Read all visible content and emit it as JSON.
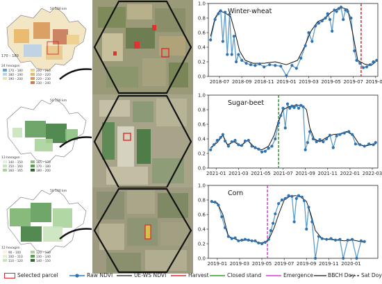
{
  "colors": {
    "raw": "#5b9ccc",
    "raw_dot": "#2f72b0",
    "fit": "#111111",
    "harvest": "#e0262b",
    "closed": "#2e9a2e",
    "emergence": "#d93ad9",
    "bbch": "#111111",
    "sat": "#111111",
    "parcel": "#e0262b"
  },
  "maps": [
    {
      "scale_label": "50 100 km",
      "extra_label": "170 – 180",
      "legend_title": "24 hexagon",
      "legend": [
        "170 – 180",
        "180 – 190",
        "190 – 200",
        "200 – 210",
        "210 – 220",
        "220 – 230",
        "230 – 240"
      ]
    },
    {
      "scale_label": "50 100 km",
      "extra_label": "",
      "legend_title": "13 hexagon",
      "legend": [
        "140 – 150",
        "150 – 160",
        "160 – 165",
        "165 – 170",
        "170 – 180",
        "180 – 200"
      ]
    },
    {
      "scale_label": "50 100 km",
      "extra_label": "",
      "legend_title": "12 hexagon",
      "legend": [
        "90 – 100",
        "100 – 110",
        "110 – 120",
        "120 – 130",
        "130 – 140",
        "140 – 150"
      ]
    }
  ],
  "chart_data": [
    {
      "type": "line",
      "title": "Winter-wheat",
      "ylim": [
        0,
        1.0
      ],
      "yticks": [
        "0.0",
        "0.2",
        "0.4",
        "0.6",
        "0.8",
        "1.0"
      ],
      "xlim": [
        0,
        15.2
      ],
      "xticks": [
        {
          "v": 1,
          "label": "2018-07"
        },
        {
          "v": 3,
          "label": "2018-09"
        },
        {
          "v": 5,
          "label": "2018-11"
        },
        {
          "v": 7,
          "label": "2019-01"
        },
        {
          "v": 9,
          "label": "2019-03"
        },
        {
          "v": 11,
          "label": "2019-05"
        },
        {
          "v": 13,
          "label": "2019-07"
        },
        {
          "v": 15,
          "label": "2019-09"
        }
      ],
      "events": [
        {
          "x": 13.7,
          "kind": "harvest"
        }
      ],
      "fit": [
        [
          0.2,
          0.55
        ],
        [
          0.6,
          0.8
        ],
        [
          1.0,
          0.9
        ],
        [
          1.5,
          0.87
        ],
        [
          2.0,
          0.82
        ],
        [
          2.4,
          0.6
        ],
        [
          2.8,
          0.35
        ],
        [
          3.3,
          0.22
        ],
        [
          4.0,
          0.18
        ],
        [
          5.0,
          0.18
        ],
        [
          6.0,
          0.2
        ],
        [
          7.0,
          0.16
        ],
        [
          8.0,
          0.22
        ],
        [
          8.6,
          0.4
        ],
        [
          9.2,
          0.62
        ],
        [
          9.8,
          0.75
        ],
        [
          10.5,
          0.8
        ],
        [
          11.0,
          0.88
        ],
        [
          11.5,
          0.92
        ],
        [
          12.0,
          0.94
        ],
        [
          12.5,
          0.92
        ],
        [
          13.0,
          0.55
        ],
        [
          13.4,
          0.22
        ],
        [
          14.0,
          0.17
        ],
        [
          14.6,
          0.15
        ],
        [
          15.0,
          0.2
        ]
      ],
      "raw": [
        [
          0.2,
          0.5
        ],
        [
          0.6,
          0.78
        ],
        [
          0.9,
          0.86
        ],
        [
          1.1,
          0.9
        ],
        [
          1.3,
          0.48
        ],
        [
          1.5,
          0.88
        ],
        [
          1.7,
          0.3
        ],
        [
          1.9,
          0.85
        ],
        [
          2.1,
          0.3
        ],
        [
          2.3,
          0.55
        ],
        [
          2.5,
          0.2
        ],
        [
          2.7,
          0.3
        ],
        [
          3.0,
          0.22
        ],
        [
          3.4,
          0.18
        ],
        [
          3.8,
          0.16
        ],
        [
          4.2,
          0.15
        ],
        [
          4.6,
          0.17
        ],
        [
          5.0,
          0.13
        ],
        [
          5.5,
          0.16
        ],
        [
          6.0,
          0.15
        ],
        [
          6.5,
          0.14
        ],
        [
          7.0,
          0.01
        ],
        [
          7.5,
          0.15
        ],
        [
          7.9,
          0.11
        ],
        [
          8.3,
          0.25
        ],
        [
          8.7,
          0.42
        ],
        [
          9.0,
          0.6
        ],
        [
          9.3,
          0.48
        ],
        [
          9.6,
          0.69
        ],
        [
          9.9,
          0.73
        ],
        [
          10.2,
          0.76
        ],
        [
          10.5,
          0.8
        ],
        [
          10.7,
          0.86
        ],
        [
          10.9,
          0.78
        ],
        [
          11.1,
          0.62
        ],
        [
          11.3,
          0.91
        ],
        [
          11.5,
          0.89
        ],
        [
          11.7,
          0.93
        ],
        [
          11.9,
          0.95
        ],
        [
          12.1,
          0.78
        ],
        [
          12.3,
          0.91
        ],
        [
          12.5,
          0.89
        ],
        [
          12.8,
          0.8
        ],
        [
          13.1,
          0.35
        ],
        [
          13.3,
          0.22
        ],
        [
          13.6,
          0.18
        ],
        [
          13.9,
          0.12
        ],
        [
          14.2,
          0.13
        ],
        [
          14.5,
          0.16
        ],
        [
          14.8,
          0.2
        ],
        [
          15.1,
          0.22
        ]
      ]
    },
    {
      "type": "line",
      "title": "Sugar-beet",
      "ylim": [
        0,
        1.0
      ],
      "yticks": [
        "0.0",
        "0.2",
        "0.4",
        "0.6",
        "0.8",
        "1.0"
      ],
      "xlim": [
        0,
        15.2
      ],
      "xticks": [
        {
          "v": 0.7,
          "label": "2021-01"
        },
        {
          "v": 2.7,
          "label": "2021-03"
        },
        {
          "v": 4.7,
          "label": "2021-05"
        },
        {
          "v": 6.7,
          "label": "2021-07"
        },
        {
          "v": 8.7,
          "label": "2021-09"
        },
        {
          "v": 10.7,
          "label": "2021-11"
        },
        {
          "v": 12.7,
          "label": "2022-01"
        },
        {
          "v": 14.7,
          "label": "2022-03"
        }
      ],
      "events": [
        {
          "x": 6.3,
          "kind": "closed"
        }
      ],
      "fit": [
        [
          0.2,
          0.28
        ],
        [
          0.8,
          0.35
        ],
        [
          1.3,
          0.45
        ],
        [
          1.7,
          0.32
        ],
        [
          2.3,
          0.36
        ],
        [
          2.9,
          0.3
        ],
        [
          3.5,
          0.38
        ],
        [
          4.2,
          0.28
        ],
        [
          4.8,
          0.25
        ],
        [
          5.4,
          0.3
        ],
        [
          5.9,
          0.45
        ],
        [
          6.3,
          0.65
        ],
        [
          6.7,
          0.8
        ],
        [
          7.2,
          0.84
        ],
        [
          7.8,
          0.86
        ],
        [
          8.4,
          0.86
        ],
        [
          8.8,
          0.8
        ],
        [
          9.1,
          0.55
        ],
        [
          9.5,
          0.4
        ],
        [
          10.0,
          0.36
        ],
        [
          10.6,
          0.42
        ],
        [
          11.2,
          0.46
        ],
        [
          11.8,
          0.47
        ],
        [
          12.4,
          0.5
        ],
        [
          13.0,
          0.45
        ],
        [
          13.5,
          0.33
        ],
        [
          14.0,
          0.3
        ],
        [
          14.6,
          0.32
        ],
        [
          15.0,
          0.33
        ]
      ],
      "raw": [
        [
          0.2,
          0.25
        ],
        [
          0.5,
          0.32
        ],
        [
          0.8,
          0.38
        ],
        [
          1.1,
          0.42
        ],
        [
          1.3,
          0.46
        ],
        [
          1.5,
          0.37
        ],
        [
          1.8,
          0.3
        ],
        [
          2.1,
          0.36
        ],
        [
          2.4,
          0.38
        ],
        [
          2.7,
          0.32
        ],
        [
          3.0,
          0.31
        ],
        [
          3.3,
          0.37
        ],
        [
          3.6,
          0.38
        ],
        [
          3.9,
          0.3
        ],
        [
          4.2,
          0.28
        ],
        [
          4.5,
          0.26
        ],
        [
          4.8,
          0.22
        ],
        [
          5.1,
          0.23
        ],
        [
          5.4,
          0.27
        ],
        [
          5.7,
          0.3
        ],
        [
          6.0,
          0.4
        ],
        [
          6.3,
          0.62
        ],
        [
          6.5,
          0.72
        ],
        [
          6.7,
          0.82
        ],
        [
          6.9,
          0.55
        ],
        [
          7.1,
          0.88
        ],
        [
          7.3,
          0.82
        ],
        [
          7.5,
          0.85
        ],
        [
          7.7,
          0.83
        ],
        [
          7.9,
          0.86
        ],
        [
          8.1,
          0.82
        ],
        [
          8.3,
          0.86
        ],
        [
          8.5,
          0.84
        ],
        [
          8.7,
          0.25
        ],
        [
          8.9,
          0.35
        ],
        [
          9.1,
          0.5
        ],
        [
          9.4,
          0.4
        ],
        [
          9.7,
          0.36
        ],
        [
          10.0,
          0.39
        ],
        [
          10.3,
          0.36
        ],
        [
          10.6,
          0.4
        ],
        [
          10.9,
          0.45
        ],
        [
          11.2,
          0.28
        ],
        [
          11.5,
          0.44
        ],
        [
          11.8,
          0.46
        ],
        [
          12.2,
          0.48
        ],
        [
          12.6,
          0.5
        ],
        [
          12.9,
          0.46
        ],
        [
          13.2,
          0.33
        ],
        [
          13.6,
          0.32
        ],
        [
          14.0,
          0.3
        ],
        [
          14.4,
          0.33
        ],
        [
          14.8,
          0.32
        ],
        [
          15.0,
          0.35
        ]
      ]
    },
    {
      "type": "line",
      "title": "Corn",
      "ylim": [
        0,
        1.0
      ],
      "yticks": [
        "0.0",
        "0.2",
        "0.4",
        "0.6",
        "0.8",
        "1.0"
      ],
      "xlim": [
        0,
        15.2
      ],
      "xticks": [
        {
          "v": 0.8,
          "label": "2019-01"
        },
        {
          "v": 2.8,
          "label": "2019-03"
        },
        {
          "v": 4.8,
          "label": "2019-05"
        },
        {
          "v": 6.8,
          "label": "2019-07"
        },
        {
          "v": 8.8,
          "label": "2019-09"
        },
        {
          "v": 10.8,
          "label": "2019-11"
        },
        {
          "v": 12.8,
          "label": "2020-01"
        }
      ],
      "events": [
        {
          "x": 5.3,
          "kind": "emergence"
        }
      ],
      "fit": [
        [
          0.3,
          0.77
        ],
        [
          0.8,
          0.76
        ],
        [
          1.3,
          0.6
        ],
        [
          1.8,
          0.3
        ],
        [
          2.3,
          0.27
        ],
        [
          2.8,
          0.24
        ],
        [
          3.4,
          0.25
        ],
        [
          4.0,
          0.24
        ],
        [
          4.6,
          0.21
        ],
        [
          5.0,
          0.22
        ],
        [
          5.4,
          0.25
        ],
        [
          5.9,
          0.42
        ],
        [
          6.3,
          0.6
        ],
        [
          6.8,
          0.8
        ],
        [
          7.3,
          0.85
        ],
        [
          7.8,
          0.86
        ],
        [
          8.3,
          0.84
        ],
        [
          8.8,
          0.78
        ],
        [
          9.2,
          0.6
        ],
        [
          9.6,
          0.38
        ],
        [
          10.2,
          0.27
        ],
        [
          10.8,
          0.26
        ],
        [
          11.5,
          0.25
        ],
        [
          12.2,
          0.24
        ],
        [
          13.0,
          0.25
        ],
        [
          13.6,
          0.23
        ],
        [
          14.0,
          0.22
        ]
      ],
      "raw": [
        [
          0.3,
          0.78
        ],
        [
          0.6,
          0.77
        ],
        [
          0.9,
          0.73
        ],
        [
          1.2,
          0.57
        ],
        [
          1.5,
          0.42
        ],
        [
          1.8,
          0.3
        ],
        [
          2.1,
          0.27
        ],
        [
          2.4,
          0.28
        ],
        [
          2.7,
          0.24
        ],
        [
          3.0,
          0.25
        ],
        [
          3.3,
          0.26
        ],
        [
          3.6,
          0.25
        ],
        [
          3.9,
          0.24
        ],
        [
          4.2,
          0.24
        ],
        [
          4.5,
          0.21
        ],
        [
          4.8,
          0.2
        ],
        [
          5.1,
          0.22
        ],
        [
          5.4,
          0.26
        ],
        [
          5.6,
          0.38
        ],
        [
          5.8,
          0.48
        ],
        [
          6.0,
          0.61
        ],
        [
          6.3,
          0.75
        ],
        [
          6.6,
          0.8
        ],
        [
          6.9,
          0.82
        ],
        [
          7.2,
          0.86
        ],
        [
          7.5,
          0.85
        ],
        [
          7.7,
          0.5
        ],
        [
          7.9,
          0.82
        ],
        [
          8.1,
          0.86
        ],
        [
          8.4,
          0.84
        ],
        [
          8.6,
          0.79
        ],
        [
          8.8,
          0.4
        ],
        [
          9.0,
          0.7
        ],
        [
          9.3,
          0.5
        ],
        [
          9.6,
          0.0
        ],
        [
          9.9,
          0.3
        ],
        [
          10.2,
          0.27
        ],
        [
          10.6,
          0.26
        ],
        [
          11.0,
          0.27
        ],
        [
          11.4,
          0.25
        ],
        [
          11.8,
          0.26
        ],
        [
          12.1,
          0.0
        ],
        [
          12.5,
          0.25
        ],
        [
          12.9,
          0.26
        ],
        [
          13.3,
          0.0
        ],
        [
          13.7,
          0.24
        ],
        [
          14.0,
          0.23
        ]
      ]
    }
  ],
  "legend": {
    "selected_parcel": "Selected parcel",
    "raw_ndvi": "Raw NDVI",
    "uews_ndvi": "UE-WS NDVI",
    "harvest": "Harvest",
    "closed_stand": "Closed stand",
    "emergence": "Emergence",
    "bbch_doy": "BBCH Doy",
    "sat_doy": "Sat Doy"
  }
}
